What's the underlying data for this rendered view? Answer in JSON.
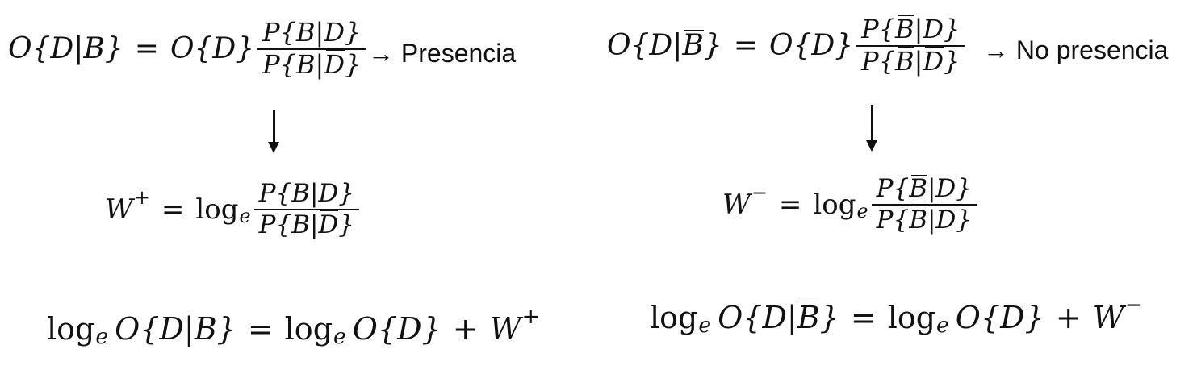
{
  "left": {
    "odds": {
      "lhs": "O{D|B}",
      "rhs_prefix": "O{D}",
      "num_head": "P{",
      "num_var": "B",
      "num_tail": "|D}",
      "den_head": "P{",
      "den_var": "B",
      "den_mid": "|",
      "den_bar_var": "D",
      "den_tail": "}"
    },
    "label": "→ Presencia",
    "weight": {
      "symbol": "W",
      "sign": "+",
      "log": "log",
      "base": "e",
      "num": "P{B|D}",
      "den_head": "P{B|",
      "den_bar_var": "D",
      "den_tail": "}"
    },
    "logodds": {
      "lhs_log": "log",
      "lhs_base": "e",
      "lhs_rest": "O{D|B}",
      "rhs_log": "log",
      "rhs_base": "e",
      "rhs_rest": "O{D}",
      "plus": "+",
      "w": "W",
      "w_sign": "+"
    }
  },
  "right": {
    "odds": {
      "lhs_head": "O{D|",
      "lhs_bar_var": "B",
      "lhs_tail": "}",
      "rhs_prefix": "O{D}",
      "num_head": "P{",
      "num_bar_var": "B",
      "num_tail": "|D}",
      "den_head": "P{",
      "den_bar_var1": "B",
      "den_mid": "|",
      "den_bar_var2": "D",
      "den_tail": "}"
    },
    "label": "→ No presencia",
    "weight": {
      "symbol": "W",
      "sign": "−",
      "log": "log",
      "base": "e",
      "num_head": "P{",
      "num_bar_var": "B",
      "num_tail": "|D}",
      "den_head": "P{",
      "den_bar_var1": "B",
      "den_mid": "|",
      "den_bar_var2": "D",
      "den_tail": "}"
    },
    "logodds": {
      "lhs_log": "log",
      "lhs_base": "e",
      "lhs_head": "O{D|",
      "lhs_bar_var": "B",
      "lhs_tail": "}",
      "rhs_log": "log",
      "rhs_base": "e",
      "rhs_rest": "O{D}",
      "plus": "+",
      "w": "W",
      "w_sign": "−"
    }
  },
  "equals": "="
}
